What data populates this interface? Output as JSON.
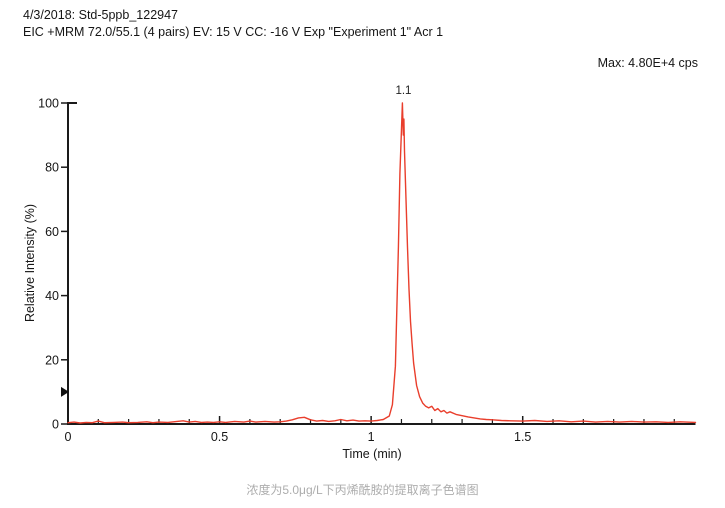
{
  "header": {
    "line1": "4/3/2018: Std-5ppb_122947",
    "line2": "EIC +MRM 72.0/55.1 (4 pairs) EV: 15 V CC: -16 V Exp \"Experiment 1\" Acr 1",
    "max_label": "Max: 4.80E+4 cps"
  },
  "caption": "浓度为5.0μg/L下丙烯酰胺的提取离子色谱图",
  "colors": {
    "trace": "#e93e2c",
    "axis": "#1a1a1a",
    "caption_gray": "#adadad"
  },
  "chart_data": {
    "type": "line",
    "title": "",
    "xlabel": "Time (min)",
    "ylabel": "Relative Intensity (%)",
    "xlim": [
      0,
      2.07
    ],
    "ylim": [
      0,
      100
    ],
    "grid": false,
    "legend": "none",
    "x_major_ticks": [
      {
        "value": 0,
        "label": "0"
      },
      {
        "value": 0.5,
        "label": "0.5"
      },
      {
        "value": 1,
        "label": "1"
      },
      {
        "value": 1.5,
        "label": "1.5"
      }
    ],
    "x_minor_step": 0.1,
    "x_minor_max": 2.0,
    "y_major_ticks": [
      {
        "value": 0,
        "label": "0"
      },
      {
        "value": 20,
        "label": "20"
      },
      {
        "value": 40,
        "label": "40"
      },
      {
        "value": 60,
        "label": "60"
      },
      {
        "value": 80,
        "label": "80"
      },
      {
        "value": 100,
        "label": "100"
      }
    ],
    "peak_annotation": {
      "t": 1.1,
      "label": "1.1"
    },
    "axis_marker": {
      "shape": "right-triangle",
      "y_percent": 10,
      "color": "#111111"
    },
    "series": [
      {
        "name": "EIC +MRM 72.0/55.1",
        "color": "#e93e2c",
        "points": [
          [
            0.0,
            0.4
          ],
          [
            0.02,
            0.6
          ],
          [
            0.04,
            0.3
          ],
          [
            0.06,
            0.5
          ],
          [
            0.08,
            0.4
          ],
          [
            0.1,
            0.9
          ],
          [
            0.12,
            0.4
          ],
          [
            0.15,
            0.5
          ],
          [
            0.18,
            0.6
          ],
          [
            0.2,
            0.4
          ],
          [
            0.23,
            0.5
          ],
          [
            0.26,
            0.7
          ],
          [
            0.28,
            0.4
          ],
          [
            0.3,
            0.6
          ],
          [
            0.33,
            0.5
          ],
          [
            0.36,
            0.8
          ],
          [
            0.38,
            1.0
          ],
          [
            0.4,
            0.6
          ],
          [
            0.42,
            0.8
          ],
          [
            0.44,
            0.5
          ],
          [
            0.46,
            0.6
          ],
          [
            0.48,
            0.5
          ],
          [
            0.5,
            0.7
          ],
          [
            0.52,
            0.5
          ],
          [
            0.55,
            0.8
          ],
          [
            0.58,
            0.6
          ],
          [
            0.6,
            0.9
          ],
          [
            0.62,
            0.6
          ],
          [
            0.65,
            0.8
          ],
          [
            0.68,
            0.6
          ],
          [
            0.7,
            0.7
          ],
          [
            0.72,
            0.9
          ],
          [
            0.74,
            1.3
          ],
          [
            0.76,
            1.9
          ],
          [
            0.78,
            2.1
          ],
          [
            0.8,
            1.3
          ],
          [
            0.82,
            0.9
          ],
          [
            0.84,
            1.1
          ],
          [
            0.86,
            0.8
          ],
          [
            0.88,
            1.0
          ],
          [
            0.9,
            1.4
          ],
          [
            0.92,
            1.0
          ],
          [
            0.94,
            1.2
          ],
          [
            0.96,
            0.9
          ],
          [
            0.98,
            1.0
          ],
          [
            1.0,
            0.9
          ],
          [
            1.02,
            1.1
          ],
          [
            1.04,
            1.4
          ],
          [
            1.06,
            2.5
          ],
          [
            1.07,
            6
          ],
          [
            1.08,
            18
          ],
          [
            1.09,
            55
          ],
          [
            1.095,
            78
          ],
          [
            1.1,
            92
          ],
          [
            1.103,
            100
          ],
          [
            1.106,
            90
          ],
          [
            1.108,
            95
          ],
          [
            1.11,
            85
          ],
          [
            1.115,
            70
          ],
          [
            1.12,
            55
          ],
          [
            1.125,
            42
          ],
          [
            1.13,
            32
          ],
          [
            1.135,
            25
          ],
          [
            1.14,
            19
          ],
          [
            1.15,
            12
          ],
          [
            1.16,
            8.5
          ],
          [
            1.17,
            6.5
          ],
          [
            1.18,
            5.5
          ],
          [
            1.19,
            5.0
          ],
          [
            1.2,
            5.5
          ],
          [
            1.21,
            4.2
          ],
          [
            1.22,
            4.8
          ],
          [
            1.23,
            3.8
          ],
          [
            1.24,
            4.2
          ],
          [
            1.25,
            3.4
          ],
          [
            1.26,
            3.8
          ],
          [
            1.28,
            3.0
          ],
          [
            1.3,
            2.6
          ],
          [
            1.32,
            2.2
          ],
          [
            1.34,
            1.9
          ],
          [
            1.36,
            1.6
          ],
          [
            1.38,
            1.4
          ],
          [
            1.4,
            1.3
          ],
          [
            1.43,
            1.1
          ],
          [
            1.46,
            1.0
          ],
          [
            1.5,
            0.9
          ],
          [
            1.54,
            1.1
          ],
          [
            1.58,
            0.8
          ],
          [
            1.62,
            1.0
          ],
          [
            1.66,
            0.7
          ],
          [
            1.7,
            0.9
          ],
          [
            1.74,
            0.6
          ],
          [
            1.78,
            0.8
          ],
          [
            1.82,
            0.6
          ],
          [
            1.86,
            0.8
          ],
          [
            1.9,
            0.6
          ],
          [
            1.94,
            0.7
          ],
          [
            1.98,
            0.5
          ],
          [
            2.02,
            0.7
          ],
          [
            2.07,
            0.5
          ]
        ]
      }
    ]
  }
}
